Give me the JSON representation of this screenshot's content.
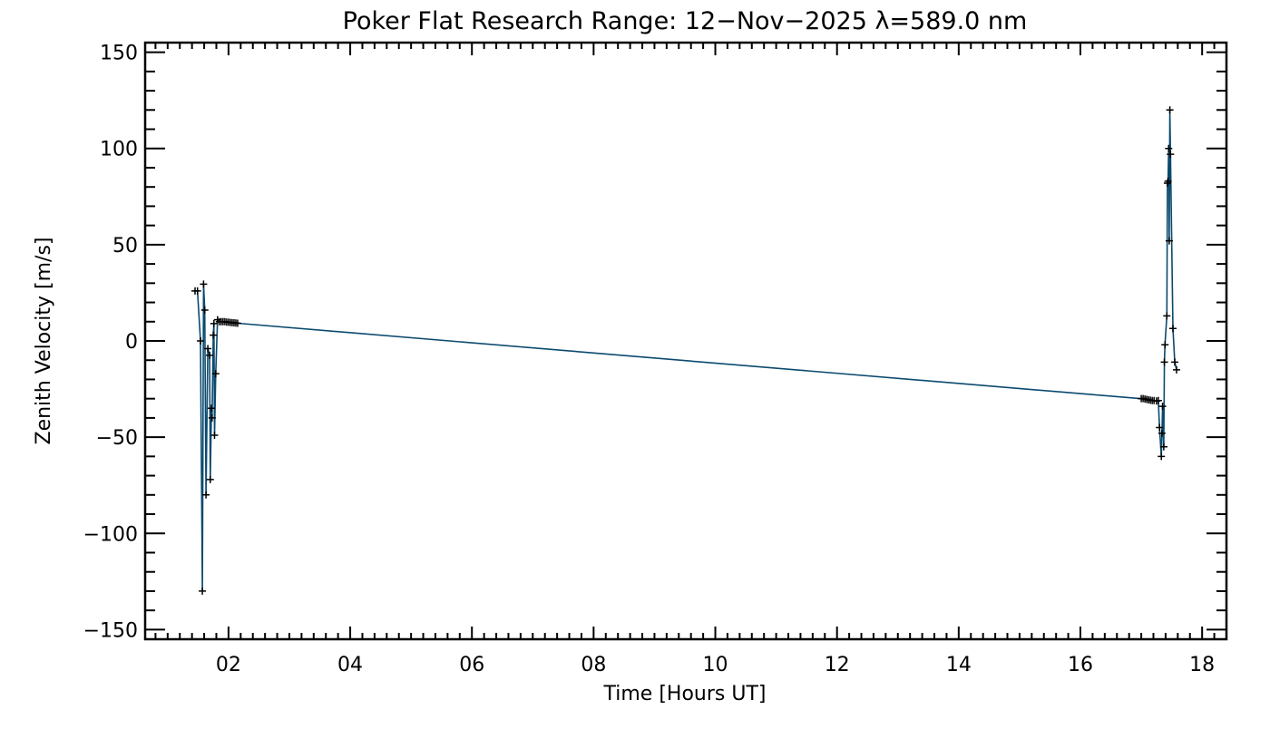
{
  "chart_data": {
    "type": "line",
    "title": "Poker Flat Research Range: 12−Nov−2025 λ=589.0 nm",
    "xlabel": "Time [Hours UT]",
    "ylabel": "Zenith Velocity [m/s]",
    "xlim": [
      0.63,
      18.4
    ],
    "ylim": [
      -155,
      155
    ],
    "xticks": [
      2,
      4,
      6,
      8,
      10,
      12,
      14,
      16,
      18
    ],
    "xtick_labels": [
      "02",
      "04",
      "06",
      "08",
      "10",
      "12",
      "14",
      "16",
      "18"
    ],
    "yticks": [
      -150,
      -100,
      -50,
      0,
      50,
      100,
      150
    ],
    "ytick_labels": [
      "−150",
      "−100",
      "−50",
      "0",
      "50",
      "100",
      "150"
    ],
    "grid": false,
    "line_color": "#0b4a6f",
    "marker": "+",
    "series": [
      {
        "name": "zenith velocity",
        "x": [
          1.45,
          1.49,
          1.54,
          1.57,
          1.59,
          1.61,
          1.63,
          1.66,
          1.69,
          1.7,
          1.72,
          1.73,
          1.75,
          1.76,
          1.77,
          1.79,
          1.82,
          1.85,
          1.88,
          1.91,
          1.94,
          1.97,
          2.0,
          2.03,
          2.06,
          2.09,
          2.12,
          2.15,
          17.0,
          17.03,
          17.06,
          17.09,
          17.12,
          17.15,
          17.18,
          17.21,
          17.25,
          17.28,
          17.3,
          17.33,
          17.34,
          17.35,
          17.37,
          17.38,
          17.39,
          17.42,
          17.43,
          17.44,
          17.45,
          17.46,
          17.47,
          17.48,
          17.52,
          17.55,
          17.58
        ],
        "y": [
          26,
          26,
          0,
          -130,
          29.5,
          16,
          -80,
          -4,
          -7.5,
          -72,
          -35,
          -40,
          3,
          9,
          -49,
          -17,
          11,
          10,
          10,
          10,
          10,
          9.8,
          9.7,
          9.6,
          9.5,
          9.4,
          9.3,
          9.2,
          -30,
          -30,
          -30.2,
          -30.4,
          -30.6,
          -30.8,
          -31,
          -31,
          -31.2,
          -31,
          -45,
          -60,
          -48,
          -34,
          -55,
          -11,
          -2,
          13,
          82,
          83,
          100,
          52,
          120,
          97,
          6.5,
          -11,
          -15
        ]
      }
    ]
  }
}
